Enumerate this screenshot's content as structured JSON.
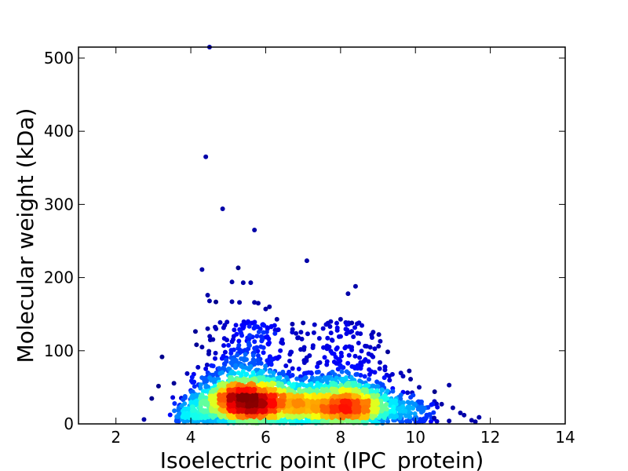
{
  "chart_data": {
    "type": "scatter",
    "xlabel": "Isoelectric point (IPC_protein)",
    "ylabel": "Molecular weight (kDa)",
    "xlim": [
      1,
      14
    ],
    "ylim": [
      0,
      515
    ],
    "x_ticks": [
      2,
      4,
      6,
      8,
      10,
      12,
      14
    ],
    "y_ticks": [
      0,
      100,
      200,
      300,
      400,
      500
    ],
    "grid": false,
    "color_scale": "jet (point density: blue = low, red = high)",
    "density_clusters": [
      {
        "x_center": 5.4,
        "y_center": 32,
        "peak_color": "#8b0000"
      },
      {
        "x_center": 8.2,
        "y_center": 26,
        "peak_color": "#ffd84a"
      }
    ],
    "points": [
      {
        "x": 4.5,
        "y": 515
      },
      {
        "x": 4.4,
        "y": 365
      },
      {
        "x": 4.85,
        "y": 294
      },
      {
        "x": 5.7,
        "y": 265
      },
      {
        "x": 7.1,
        "y": 223
      },
      {
        "x": 4.3,
        "y": 211
      },
      {
        "x": 5.1,
        "y": 194
      },
      {
        "x": 5.4,
        "y": 193
      },
      {
        "x": 5.6,
        "y": 193
      },
      {
        "x": 8.4,
        "y": 188
      },
      {
        "x": 8.2,
        "y": 178
      },
      {
        "x": 4.45,
        "y": 176
      },
      {
        "x": 4.5,
        "y": 168
      },
      {
        "x": 5.1,
        "y": 167
      },
      {
        "x": 5.3,
        "y": 166
      },
      {
        "x": 5.7,
        "y": 166
      },
      {
        "x": 5.8,
        "y": 165
      },
      {
        "x": 6.1,
        "y": 160
      },
      {
        "x": 6.0,
        "y": 157
      },
      {
        "x": 6.3,
        "y": 143
      },
      {
        "x": 8.0,
        "y": 143
      },
      {
        "x": 8.3,
        "y": 138
      },
      {
        "x": 7.0,
        "y": 138
      },
      {
        "x": 4.3,
        "y": 105
      },
      {
        "x": 2.75,
        "y": 6
      },
      {
        "x": 10.1,
        "y": 50
      },
      {
        "x": 10.9,
        "y": 53
      },
      {
        "x": 11.0,
        "y": 22
      },
      {
        "x": 11.2,
        "y": 15
      },
      {
        "x": 11.3,
        "y": 12
      },
      {
        "x": 11.5,
        "y": 5
      },
      {
        "x": 11.7,
        "y": 9
      },
      {
        "x": 11.6,
        "y": 3
      },
      {
        "x": 10.9,
        "y": 4
      },
      {
        "x": 10.5,
        "y": 8
      },
      {
        "x": 10.7,
        "y": 27
      }
    ]
  }
}
